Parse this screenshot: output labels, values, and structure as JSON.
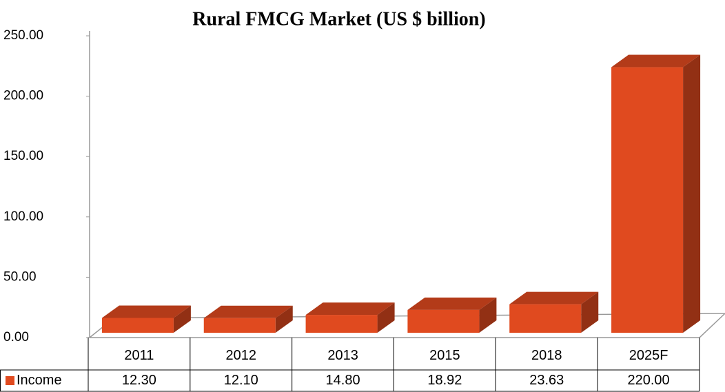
{
  "chart_data": {
    "type": "bar3d",
    "title": "Rural FMCG Market (US $ billion)",
    "categories": [
      "2011",
      "2012",
      "2013",
      "2015",
      "2018",
      "2025F"
    ],
    "series": [
      {
        "name": "Income",
        "color": "#e04a1f",
        "values": [
          12.3,
          12.1,
          14.8,
          18.92,
          23.63,
          220
        ],
        "value_labels": [
          "12.30",
          "12.10",
          "14.80",
          "18.92",
          "23.63",
          "220.00"
        ]
      }
    ],
    "ylim": [
      0,
      250
    ],
    "yticks": [
      {
        "value": 0,
        "label": "0.00"
      },
      {
        "value": 50,
        "label": "50.00"
      },
      {
        "value": 100,
        "label": "100.00"
      },
      {
        "value": 150,
        "label": "150.00"
      },
      {
        "value": 200,
        "label": "200.00"
      },
      {
        "value": 250,
        "label": "250.00"
      }
    ]
  }
}
